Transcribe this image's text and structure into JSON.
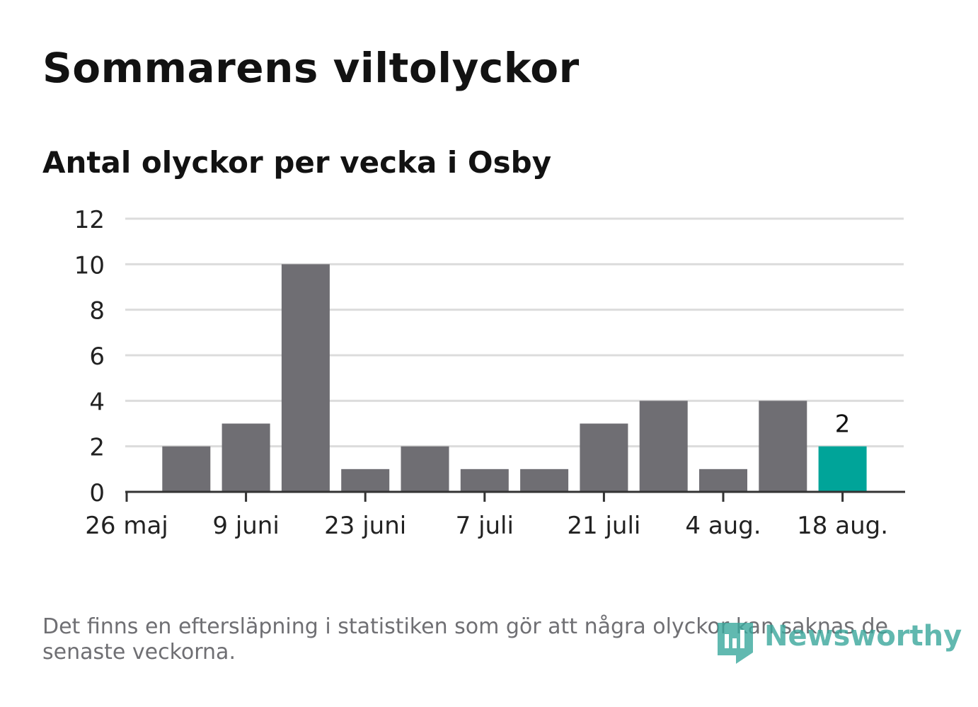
{
  "chart_data": {
    "type": "bar",
    "title": "Sommarens viltolyckor",
    "subtitle": "Antal olyckor per vecka i Osby",
    "xlabel": "",
    "ylabel": "",
    "ylim": [
      0,
      12
    ],
    "yticks": [
      "0",
      "2",
      "4",
      "6",
      "8",
      "10",
      "12"
    ],
    "xticks": [
      "26 maj",
      "9 juni",
      "23 juni",
      "7 juli",
      "21 juli",
      "4 aug.",
      "18 aug."
    ],
    "values": [
      2,
      3,
      10,
      1,
      2,
      1,
      1,
      3,
      4,
      1,
      4,
      2
    ],
    "highlight_index": 11,
    "highlight_label": "2",
    "grid": true,
    "colors": {
      "bar": "#6f6e73",
      "highlight": "#00a499",
      "grid": "#dcdcdc",
      "axis": "#333333",
      "text": "#222222"
    }
  },
  "footer": {
    "note": "Det finns en eftersläpning i statistiken som gör att några olyckor kan saknas de senaste veckorna.",
    "brand": "Newsworthy",
    "brand_icon": "newsworthy-logo-icon"
  }
}
